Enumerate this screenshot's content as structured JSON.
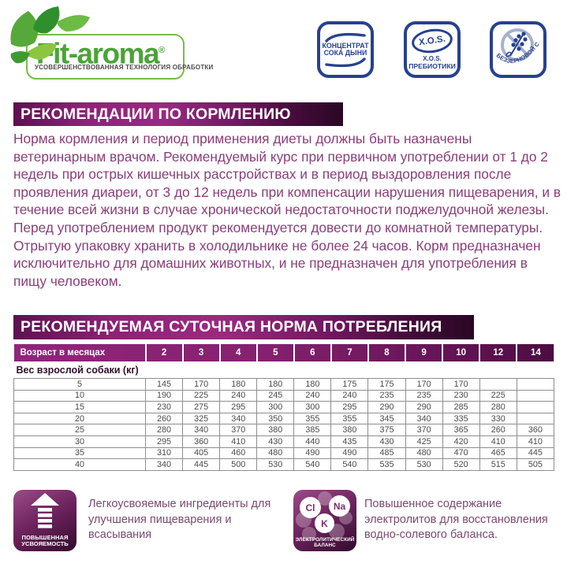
{
  "logo": {
    "brand": "Fit-aroma",
    "registered": "®",
    "tagline": "УСОВЕРШЕНСТВОВАННАЯ ТЕХНОЛОГИЯ ОБРАБОТКИ"
  },
  "badges": {
    "melon": {
      "line1": "КОНЦЕНТРАТ",
      "line2": "СОКА ДЫНИ"
    },
    "xos": {
      "mark": "X.O.S.",
      "line1": "X.O.S.",
      "line2": "ПРЕБИОТИКИ"
    },
    "grainfree": {
      "curved": "БЕЗЗЕРНОВОЙ СОСТАВ"
    }
  },
  "feeding": {
    "title": "РЕКОМЕНДАЦИИ ПО КОРМЛЕНИЮ",
    "body": "Норма кормления и период применения диеты должны быть назначены ветеринарным врачом. Рекомендуемый курс при первичном употреблении от 1 до 2 недель при острых кишечных расстройствах и в период выздоровления после проявления диареи, от 3 до 12 недель при компенсации нарушения пищеварения, и в течение всей жизни в случае хронической недостаточности поджелудочной железы. Перед употреблением продукт рекомендуется довести до комнатной температуры. Отрытую упаковку хранить в холодильнике не более 24 часов. Корм предназначен исключительно для домашних животных, и не предназначен для употребления в пищу человеком."
  },
  "norm": {
    "title": "РЕКОМЕНДУЕМАЯ СУТОЧНАЯ НОРМА ПОТРЕБЛЕНИЯ"
  },
  "table": {
    "age_header": "Возраст в месяцах",
    "weight_header": "Вес взрослой собаки (кг)",
    "ages": [
      "2",
      "3",
      "4",
      "5",
      "6",
      "7",
      "8",
      "9",
      "10",
      "12",
      "14"
    ],
    "rows": [
      {
        "weight": "5",
        "values": [
          "145",
          "170",
          "180",
          "180",
          "180",
          "175",
          "175",
          "170",
          "170",
          "",
          ""
        ]
      },
      {
        "weight": "10",
        "values": [
          "190",
          "225",
          "240",
          "245",
          "240",
          "240",
          "235",
          "235",
          "230",
          "225",
          ""
        ]
      },
      {
        "weight": "15",
        "values": [
          "230",
          "275",
          "295",
          "300",
          "300",
          "295",
          "290",
          "290",
          "285",
          "280",
          ""
        ]
      },
      {
        "weight": "20",
        "values": [
          "260",
          "325",
          "340",
          "350",
          "355",
          "355",
          "345",
          "340",
          "335",
          "330",
          ""
        ]
      },
      {
        "weight": "25",
        "values": [
          "280",
          "340",
          "370",
          "380",
          "385",
          "380",
          "375",
          "370",
          "365",
          "260",
          "360"
        ]
      },
      {
        "weight": "30",
        "values": [
          "295",
          "360",
          "410",
          "430",
          "440",
          "435",
          "430",
          "425",
          "420",
          "410",
          "410"
        ]
      },
      {
        "weight": "35",
        "values": [
          "310",
          "405",
          "460",
          "480",
          "490",
          "490",
          "485",
          "480",
          "470",
          "465",
          "445"
        ]
      },
      {
        "weight": "40",
        "values": [
          "340",
          "445",
          "500",
          "530",
          "540",
          "540",
          "535",
          "530",
          "520",
          "515",
          "505"
        ]
      }
    ]
  },
  "features": {
    "digest": {
      "badge_line1": "ПОВЫШЕННАЯ",
      "badge_line2": "УСВОЯЕМОСТЬ",
      "text": "Легкоусвояемые ингредиенты для улучшения пищеварения и всасывания"
    },
    "electrolyte": {
      "badge_line1": "ЭЛЕКТРОЛИТИЧЕСКИЙ",
      "badge_line2": "БАЛАНС",
      "cl": "Cl",
      "na": "Na",
      "k": "K",
      "text": "Повышенное содержание электролитов для восстановления водно-солевого баланса."
    }
  },
  "colors": {
    "accent_purple": "#8e2276",
    "badge_blue": "#26418f",
    "logo_green": "#4aa437",
    "body_text": "#8a3e79"
  }
}
